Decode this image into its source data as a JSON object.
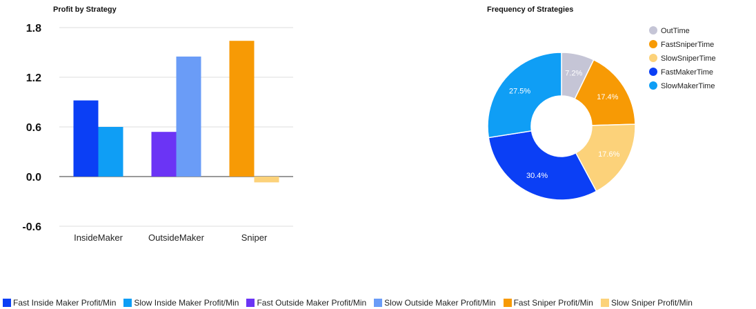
{
  "colors": {
    "fast_inside": "#0b3ff5",
    "slow_inside": "#0f9ef5",
    "fast_outside": "#6b34f5",
    "slow_outside": "#6a9cf7",
    "fast_sniper": "#f79a05",
    "slow_sniper": "#fcd27a",
    "out_time": "#c5c5d6",
    "grid": "#dcdcdc",
    "text": "#111111"
  },
  "chart_data": [
    {
      "type": "bar",
      "title": "Profit by Strategy",
      "xlabel": "",
      "ylabel": "",
      "categories": [
        "InsideMaker",
        "OutsideMaker",
        "Sniper"
      ],
      "ylim": [
        -0.6,
        1.8
      ],
      "yticks": [
        "1.8",
        "1.2",
        "0.6",
        "0.0",
        "-0.6"
      ],
      "grid": true,
      "legend_position": "bottom",
      "series": [
        {
          "name": "Fast Inside Maker Profit/Min",
          "color": "#0b3ff5",
          "values": [
            0.92,
            null,
            null
          ]
        },
        {
          "name": "Slow Inside Maker Profit/Min",
          "color": "#0f9ef5",
          "values": [
            0.6,
            null,
            null
          ]
        },
        {
          "name": "Fast Outside Maker Profit/Min",
          "color": "#6b34f5",
          "values": [
            null,
            0.54,
            null
          ]
        },
        {
          "name": "Slow Outside Maker Profit/Min",
          "color": "#6a9cf7",
          "values": [
            null,
            1.45,
            null
          ]
        },
        {
          "name": "Fast Sniper Profit/Min",
          "color": "#f79a05",
          "values": [
            null,
            null,
            1.64
          ]
        },
        {
          "name": "Slow Sniper Profit/Min",
          "color": "#fcd27a",
          "values": [
            null,
            null,
            -0.07
          ]
        }
      ]
    },
    {
      "type": "pie",
      "donut": true,
      "title": "Frequency of Strategies",
      "legend_position": "right",
      "slices": [
        {
          "label": "OutTime",
          "value": 7.2,
          "display": "7.2%",
          "color": "#c5c5d6"
        },
        {
          "label": "FastSniperTime",
          "value": 17.4,
          "display": "17.4%",
          "color": "#f79a05"
        },
        {
          "label": "SlowSniperTime",
          "value": 17.6,
          "display": "17.6%",
          "color": "#fcd27a"
        },
        {
          "label": "FastMakerTime",
          "value": 30.4,
          "display": "30.4%",
          "color": "#0b3ff5"
        },
        {
          "label": "SlowMakerTime",
          "value": 27.5,
          "display": "27.5%",
          "color": "#0f9ef5"
        }
      ]
    }
  ]
}
